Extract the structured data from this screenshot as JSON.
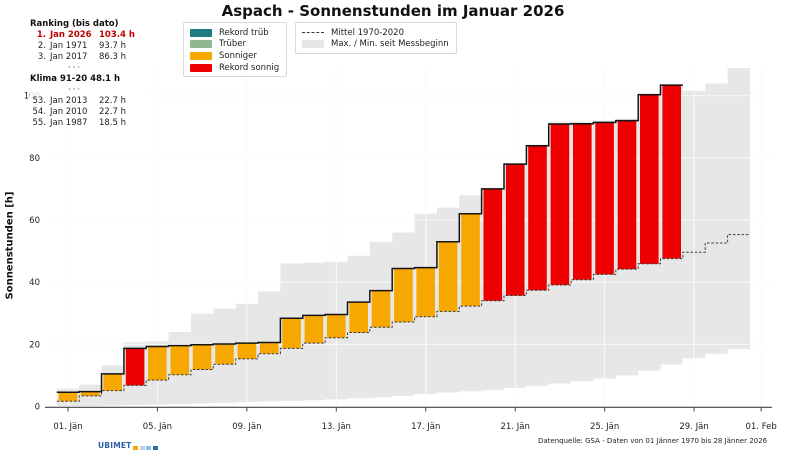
{
  "title": "Aspach - Sonnenstunden im Januar 2026",
  "ylabel": "Sonnenstunden [h]",
  "source": "Datenquelle: GSA - Daten von 01 Jänner 1970 bis 28 Jänner 2026",
  "logo": {
    "text": "UBIMET",
    "squares": [
      "#f5a800",
      "#c8cdd2",
      "#85bede",
      "#2a6db0"
    ]
  },
  "ranking": {
    "header": "Ranking (bis dato)",
    "top": [
      {
        "rank": "1.",
        "label": "Jan 2026",
        "value": "103.4 h",
        "highlight": true
      },
      {
        "rank": "2.",
        "label": "Jan 1971",
        "value": "93.7 h",
        "highlight": false
      },
      {
        "rank": "3.",
        "label": "Jan 2017",
        "value": "86.3 h",
        "highlight": false
      }
    ],
    "separator": "···",
    "klima": "Klima 91-20 48.1 h",
    "bottom": [
      {
        "rank": "53.",
        "label": "Jan 2013",
        "value": "22.7 h",
        "highlight": false
      },
      {
        "rank": "54.",
        "label": "Jan 2010",
        "value": "22.7 h",
        "highlight": false
      },
      {
        "rank": "55.",
        "label": "Jan 1987",
        "value": "18.5 h",
        "highlight": false
      }
    ]
  },
  "legend": {
    "box1": [
      {
        "label": "Rekord trüb",
        "type": "swatch",
        "color": "#1c7c80"
      },
      {
        "label": "Trüber",
        "type": "swatch",
        "color": "#90b890"
      },
      {
        "label": "Sonniger",
        "type": "swatch",
        "color": "#f6a800"
      },
      {
        "label": "Rekord sonnig",
        "type": "swatch",
        "color": "#ee0000"
      }
    ],
    "box2": [
      {
        "label": "Mittel 1970-2020",
        "type": "dashed-line",
        "color": "#3a3a3a"
      },
      {
        "label": "Max. / Min. seit Messbeginn",
        "type": "band",
        "color": "#e7e7e7"
      }
    ]
  },
  "chart_data": {
    "type": "bar",
    "subtype": "cumulative climate chart: daily step bars + mean step line + max/min band",
    "title": "Aspach - Sonnenstunden im Januar 2026",
    "xlabel": "",
    "ylabel": "Sonnenstunden [h]",
    "ylim": [
      0,
      110
    ],
    "y_ticks": [
      0,
      20,
      40,
      60,
      80,
      100
    ],
    "x_ticks": [
      {
        "day": 1,
        "label": "01. Jän"
      },
      {
        "day": 5,
        "label": "05. Jän"
      },
      {
        "day": 9,
        "label": "09. Jän"
      },
      {
        "day": 13,
        "label": "13. Jän"
      },
      {
        "day": 17,
        "label": "17. Jän"
      },
      {
        "day": 21,
        "label": "21. Jän"
      },
      {
        "day": 25,
        "label": "25. Jän"
      },
      {
        "day": 29,
        "label": "29. Jän"
      },
      {
        "day": 32,
        "label": "01. Feb"
      }
    ],
    "days_with_data": 28,
    "month_days": 31,
    "actual_cumulative": [
      4.6,
      4.8,
      10.5,
      18.7,
      19.3,
      19.6,
      19.9,
      20.1,
      20.4,
      20.6,
      28.4,
      29.3,
      29.6,
      33.6,
      37.3,
      44.4,
      44.7,
      53.0,
      62.0,
      70.0,
      78.0,
      83.9,
      90.9,
      91.0,
      91.4,
      92.0,
      100.3,
      103.4
    ],
    "bar_status": [
      "sonniger",
      "sonniger",
      "sonniger",
      "rekord_sonnig",
      "sonniger",
      "sonniger",
      "sonniger",
      "sonniger",
      "sonniger",
      "sonniger",
      "sonniger",
      "sonniger",
      "sonniger",
      "sonniger",
      "sonniger",
      "sonniger",
      "sonniger",
      "sonniger",
      "sonniger",
      "rekord_sonnig",
      "rekord_sonnig",
      "rekord_sonnig",
      "rekord_sonnig",
      "rekord_sonnig",
      "rekord_sonnig",
      "rekord_sonnig",
      "rekord_sonnig",
      "rekord_sonnig"
    ],
    "mean_cumulative_1970_2020": [
      1.7,
      3.4,
      5.1,
      6.8,
      8.5,
      10.2,
      11.9,
      13.6,
      15.3,
      17.0,
      18.7,
      20.4,
      22.1,
      23.8,
      25.5,
      27.2,
      28.9,
      30.6,
      32.3,
      34.0,
      35.7,
      37.4,
      39.1,
      40.8,
      42.5,
      44.2,
      45.9,
      47.6,
      49.6,
      52.6,
      55.3
    ],
    "max_since_records": [
      5.7,
      7.0,
      13.2,
      20.7,
      21.0,
      24.0,
      29.9,
      31.5,
      33.0,
      37.0,
      46.0,
      46.3,
      46.6,
      48.5,
      53.0,
      56.0,
      62.0,
      64.0,
      68.0,
      70.4,
      78.4,
      84.3,
      91.6,
      91.6,
      92.0,
      92.6,
      100.8,
      103.7,
      101.5,
      103.9,
      108.9
    ],
    "min_since_records": [
      0.1,
      0.2,
      0.3,
      0.4,
      0.6,
      0.8,
      1.0,
      1.2,
      1.4,
      1.6,
      1.8,
      2.0,
      2.3,
      2.6,
      2.9,
      3.4,
      4.0,
      4.5,
      4.9,
      5.2,
      6.0,
      6.7,
      7.4,
      8.1,
      9.0,
      10.0,
      11.5,
      13.5,
      15.5,
      17.0,
      18.5
    ],
    "colors": {
      "sonniger": "#f6a800",
      "rekord_sonnig": "#ee0000",
      "rekord_trueb": "#1c7c80",
      "trueber": "#90b890",
      "band": "#e7e7e7",
      "mean_line": "#3a3a3a",
      "actual_line": "#141414",
      "grid_on_white": "#efefef",
      "grid_on_band": "rgba(255,255,255,0.8)"
    },
    "legend_position": "top-center",
    "grid": true
  }
}
